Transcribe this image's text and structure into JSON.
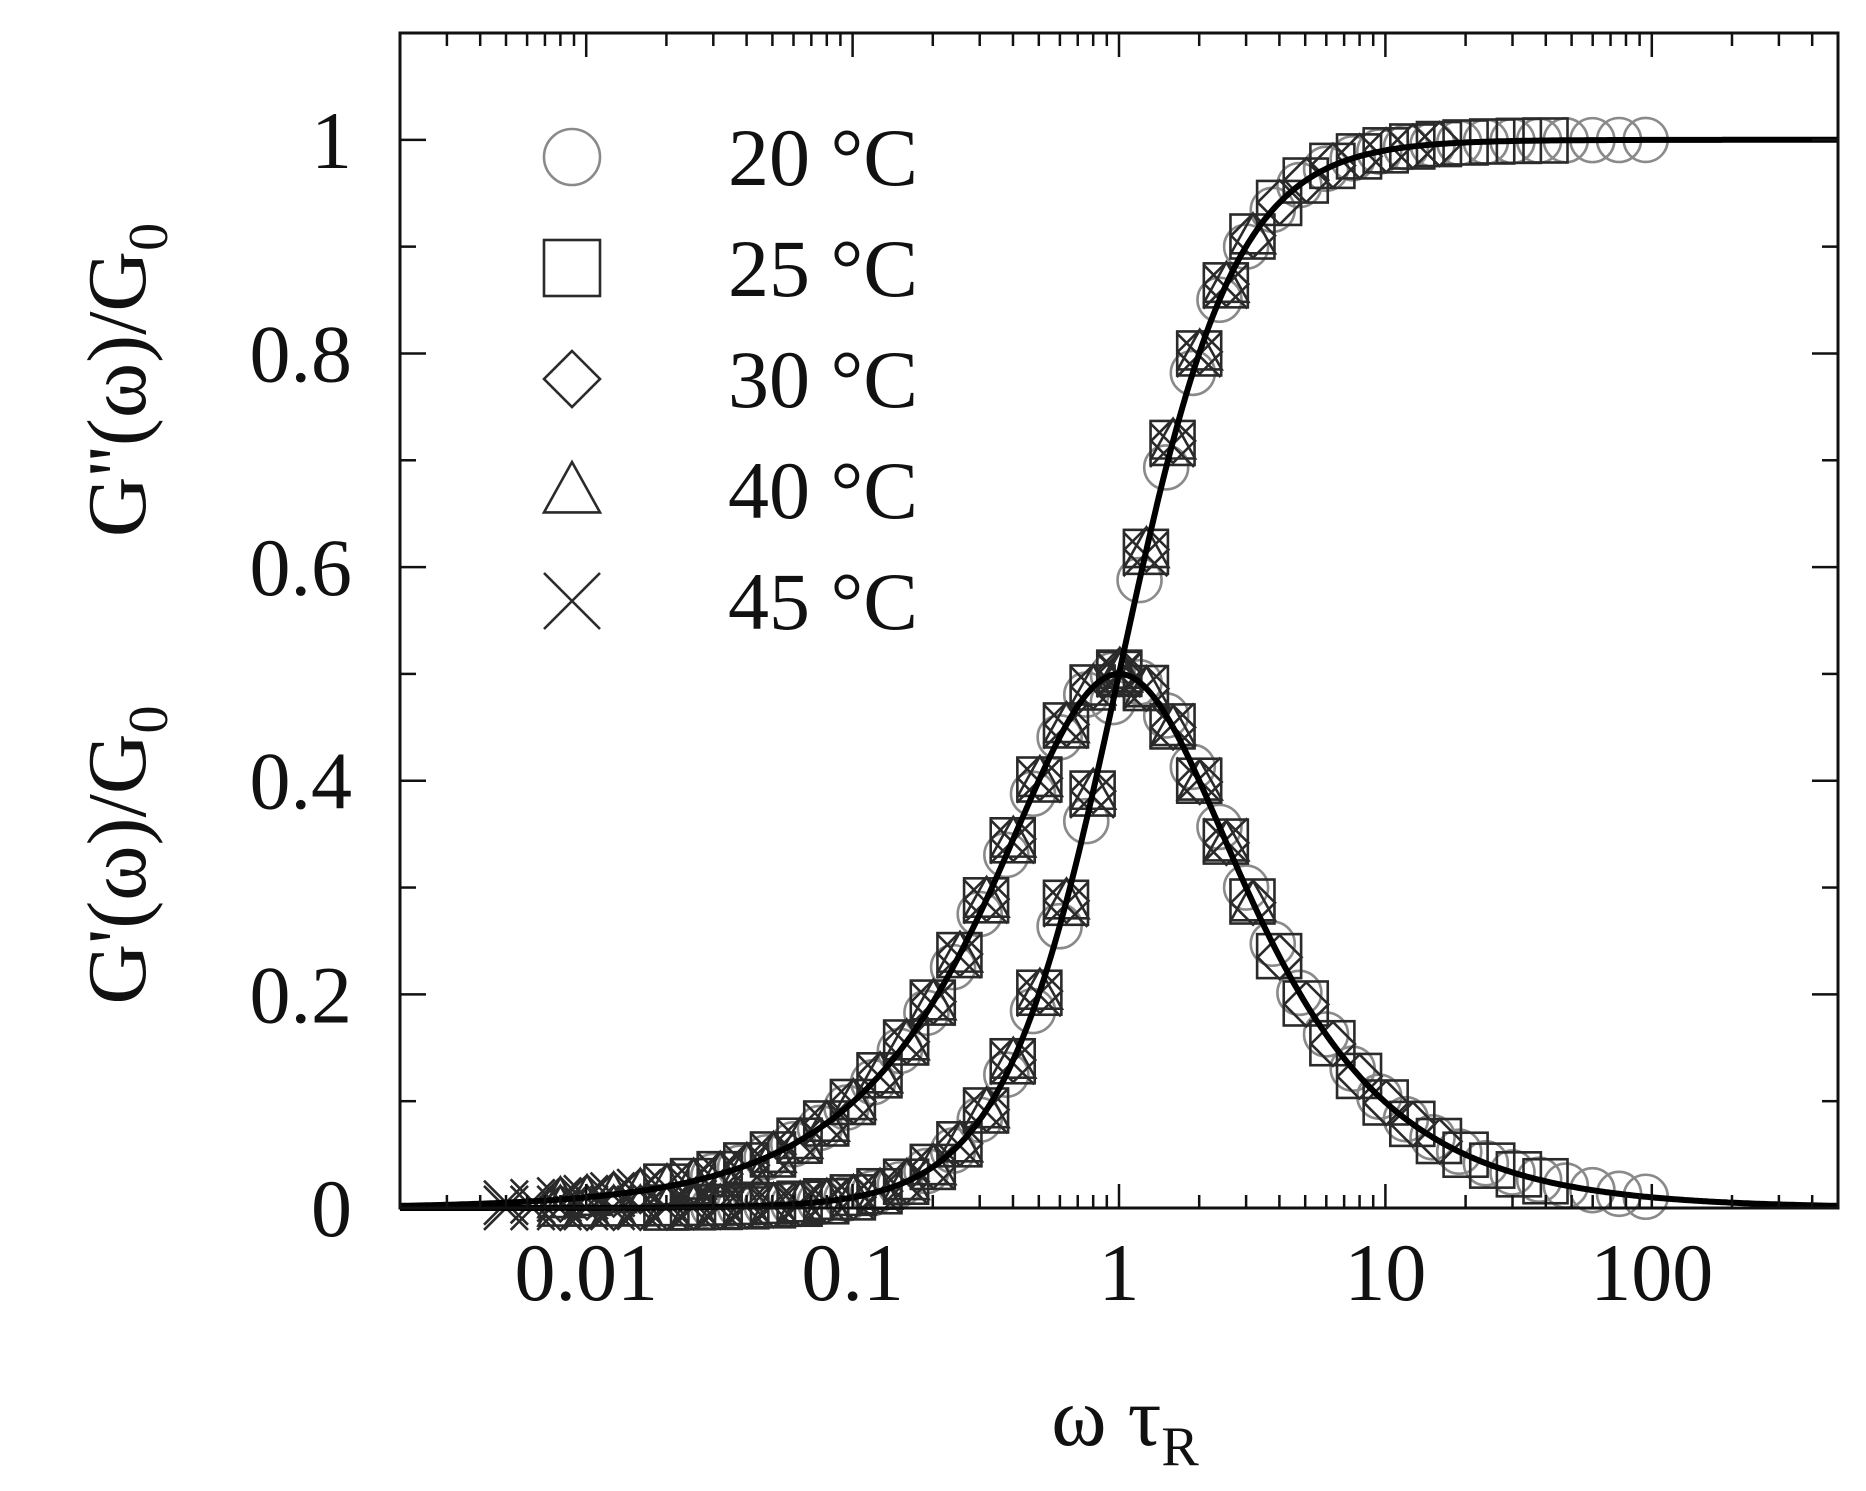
{
  "chart_data": {
    "type": "scatter",
    "x_scale": "log",
    "xlim": [
      0.002,
      500
    ],
    "ylim": [
      0,
      1.1
    ],
    "grid": false,
    "legend_position": "top-left",
    "xlabel_main": "ω τ",
    "xlabel_sub": "R",
    "ylabel_lower_main": "G'(ω)/G",
    "ylabel_lower_sub": "0",
    "ylabel_upper_main": "G''(ω)/G",
    "ylabel_upper_sub": "0",
    "x_tick_labels": [
      "0.01",
      "0.1",
      "1",
      "10",
      "100"
    ],
    "x_tick_values": [
      0.01,
      0.1,
      1,
      10,
      100
    ],
    "y_tick_labels": [
      "0",
      "0.2",
      "0.4",
      "0.6",
      "0.8",
      "1"
    ],
    "y_tick_values": [
      0,
      0.2,
      0.4,
      0.6,
      0.8,
      1
    ],
    "series": [
      {
        "name": "20 °C",
        "marker": "circle",
        "x_range": [
          0.03,
          100
        ]
      },
      {
        "name": "25 °C",
        "marker": "square",
        "x_range": [
          0.02,
          40
        ]
      },
      {
        "name": "30 °C",
        "marker": "diamond",
        "x_range": [
          0.008,
          20
        ]
      },
      {
        "name": "40 °C",
        "marker": "triangle",
        "x_range": [
          0.008,
          4
        ]
      },
      {
        "name": "45 °C",
        "marker": "cross",
        "x_range": [
          0.005,
          3
        ]
      }
    ],
    "model_curves": [
      {
        "quantity": "storage",
        "formula": "x^2/(1+x^2)",
        "x_range": [
          0.002,
          500
        ]
      },
      {
        "quantity": "loss",
        "formula": "x/(1+x^2)",
        "x_range": [
          0.002,
          500
        ]
      }
    ],
    "marker_point_spacing_decades": 0.1
  }
}
